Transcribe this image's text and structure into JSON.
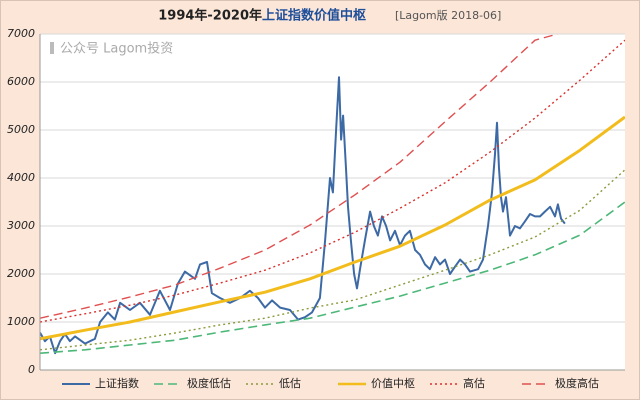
{
  "chart_data": {
    "type": "line",
    "title": "1994年-2020年",
    "title_highlight": "上证指数价值中枢",
    "subtitle": "[Lagom版 2018-06]",
    "watermark": "公众号 Lagom投资",
    "xlim": [
      1994,
      2020
    ],
    "ylim": [
      0,
      7000
    ],
    "yticks": [
      0,
      1000,
      2000,
      3000,
      4000,
      5000,
      6000,
      7000
    ],
    "grid": true,
    "legend": "bottom",
    "series": [
      {
        "name": "上证指数",
        "color": "#3d6aa5",
        "style": "solid",
        "width": 2,
        "x": [
          1994.0,
          1994.22,
          1994.44,
          1994.67,
          1994.89,
          1995.11,
          1995.33,
          1995.56,
          1996.0,
          1996.44,
          1996.67,
          1997.02,
          1997.33,
          1997.56,
          1998.0,
          1998.44,
          1998.89,
          1999.33,
          1999.78,
          2000.13,
          2000.44,
          2000.89,
          2001.11,
          2001.42,
          2001.64,
          2002.0,
          2002.44,
          2002.89,
          2003.33,
          2003.69,
          2004.0,
          2004.31,
          2004.67,
          2005.11,
          2005.47,
          2005.78,
          2006.09,
          2006.44,
          2006.67,
          2006.89,
          2007.02,
          2007.16,
          2007.29,
          2007.38,
          2007.47,
          2007.6,
          2007.69,
          2007.82,
          2007.96,
          2008.09,
          2008.22,
          2008.44,
          2008.67,
          2008.84,
          2009.02,
          2009.2,
          2009.38,
          2009.56,
          2009.78,
          2010.0,
          2010.22,
          2010.44,
          2010.67,
          2010.89,
          2011.11,
          2011.33,
          2011.56,
          2011.78,
          2012.0,
          2012.22,
          2012.44,
          2012.67,
          2012.89,
          2013.11,
          2013.47,
          2013.69,
          2013.91,
          2014.09,
          2014.22,
          2014.31,
          2014.4,
          2014.49,
          2014.58,
          2014.71,
          2014.89,
          2015.11,
          2015.33,
          2015.56,
          2015.78,
          2016.0,
          2016.22,
          2016.44,
          2016.67,
          2016.89,
          2017.02,
          2017.16,
          2017.33
        ],
        "values": [
          780,
          600,
          700,
          350,
          600,
          750,
          600,
          700,
          550,
          650,
          1000,
          1200,
          1050,
          1400,
          1250,
          1400,
          1150,
          1650,
          1250,
          1800,
          2050,
          1900,
          2200,
          2250,
          1600,
          1500,
          1400,
          1500,
          1650,
          1500,
          1300,
          1450,
          1300,
          1250,
          1050,
          1100,
          1200,
          1500,
          2700,
          4000,
          3700,
          5000,
          6100,
          4800,
          5300,
          4200,
          3400,
          2700,
          2000,
          1700,
          2100,
          2700,
          3300,
          3000,
          2800,
          3200,
          3000,
          2700,
          2900,
          2600,
          2800,
          2900,
          2500,
          2400,
          2200,
          2100,
          2350,
          2200,
          2300,
          2000,
          2150,
          2300,
          2200,
          2050,
          2100,
          2300,
          3000,
          3700,
          4500,
          5150,
          4200,
          3600,
          3300,
          3600,
          2800,
          3000,
          2950,
          3100,
          3250,
          3200,
          3200,
          3300,
          3400,
          3200,
          3450,
          3150,
          3050
        ]
      },
      {
        "name": "极度低估",
        "color": "#4cb878",
        "style": "dashed",
        "width": 1.6,
        "x": [
          1994,
          1996,
          1998,
          2000,
          2002,
          2004,
          2006,
          2008,
          2010,
          2012,
          2014,
          2016,
          2018,
          2020
        ],
        "values": [
          350,
          420,
          520,
          620,
          790,
          940,
          1080,
          1310,
          1540,
          1810,
          2080,
          2400,
          2810,
          3500
        ]
      },
      {
        "name": "低估",
        "color": "#8a9a3a",
        "style": "dotted",
        "width": 1.4,
        "x": [
          1994,
          1996,
          1998,
          2000,
          2002,
          2004,
          2006,
          2008,
          2010,
          2012,
          2014,
          2016,
          2018,
          2020
        ],
        "values": [
          420,
          520,
          620,
          770,
          940,
          1080,
          1290,
          1460,
          1770,
          2080,
          2400,
          2770,
          3330,
          4170
        ]
      },
      {
        "name": "价值中枢",
        "color": "#f2bd1c",
        "style": "solid",
        "width": 3,
        "x": [
          1994,
          1996,
          1998,
          2000,
          2002,
          2004,
          2006,
          2008,
          2010,
          2012,
          2014,
          2016,
          2018,
          2020
        ],
        "values": [
          650,
          830,
          1000,
          1210,
          1420,
          1620,
          1900,
          2250,
          2580,
          3020,
          3540,
          3960,
          4580,
          5270
        ]
      },
      {
        "name": "高估",
        "color": "#d9302c",
        "style": "dotted",
        "width": 1.4,
        "x": [
          1994,
          1996,
          1998,
          2000,
          2002,
          2004,
          2006,
          2008,
          2010,
          2012,
          2014,
          2016,
          2018,
          2020
        ],
        "values": [
          1000,
          1170,
          1350,
          1560,
          1810,
          2080,
          2440,
          2870,
          3370,
          3900,
          4540,
          5250,
          6040,
          6870
        ]
      },
      {
        "name": "极度高估",
        "color": "#e05050",
        "style": "dashed",
        "width": 1.4,
        "x": [
          1994,
          1996,
          1998,
          2000,
          2002,
          2004,
          2006,
          2008,
          2010,
          2012,
          2014,
          2016,
          2017
        ],
        "values": [
          1080,
          1290,
          1520,
          1770,
          2120,
          2500,
          3020,
          3650,
          4330,
          5170,
          6000,
          6870,
          7000
        ]
      }
    ]
  }
}
